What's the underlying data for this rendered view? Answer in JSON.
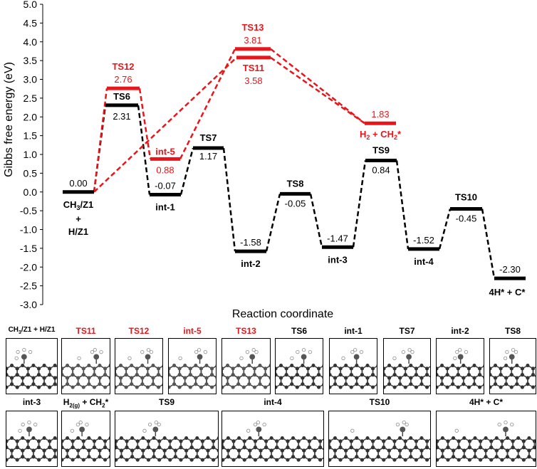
{
  "diagram": {
    "y_axis": {
      "label": "Gibbs free energy (eV)",
      "min": -3.0,
      "max": 5.0,
      "step": 0.5,
      "ticks": [
        "-3.0",
        "-2.5",
        "-2.0",
        "-1.5",
        "-1.0",
        "-0.5",
        "0.0",
        "0.5",
        "1.0",
        "1.5",
        "2.0",
        "2.5",
        "3.0",
        "3.5",
        "4.0",
        "4.5",
        "5.0"
      ]
    },
    "x_axis": {
      "label": "Reaction coordinate"
    },
    "colors": {
      "black_path": "#000000",
      "red_path": "#e8161b"
    },
    "states": [
      {
        "id": "s0",
        "name": "CH3/Z1 + H/Z1",
        "value": 0.0,
        "value_text": "0.00",
        "color": "black"
      },
      {
        "id": "ts6",
        "name": "TS6",
        "value": 2.31,
        "value_text": "2.31",
        "color": "black"
      },
      {
        "id": "ts12",
        "name": "TS12",
        "value": 2.76,
        "value_text": "2.76",
        "color": "red"
      },
      {
        "id": "int1",
        "name": "int-1",
        "value": -0.07,
        "value_text": "-0.07",
        "color": "black"
      },
      {
        "id": "int5",
        "name": "int-5",
        "value": 0.88,
        "value_text": "0.88",
        "color": "red"
      },
      {
        "id": "ts7",
        "name": "TS7",
        "value": 1.17,
        "value_text": "1.17",
        "color": "black"
      },
      {
        "id": "int2",
        "name": "int-2",
        "value": -1.58,
        "value_text": "-1.58",
        "color": "black"
      },
      {
        "id": "ts13",
        "name": "TS13",
        "value": 3.81,
        "value_text": "3.81",
        "color": "red"
      },
      {
        "id": "ts11",
        "name": "TS11",
        "value": 3.58,
        "value_text": "3.58",
        "color": "red"
      },
      {
        "id": "ts8",
        "name": "TS8",
        "value": -0.05,
        "value_text": "-0.05",
        "color": "black"
      },
      {
        "id": "int3",
        "name": "int-3",
        "value": -1.47,
        "value_text": "-1.47",
        "color": "black"
      },
      {
        "id": "ts9",
        "name": "TS9",
        "value": 0.84,
        "value_text": "0.84",
        "color": "black"
      },
      {
        "id": "h2ch2",
        "name": "H2 + CH2*",
        "value": 1.83,
        "value_text": "1.83",
        "color": "red"
      },
      {
        "id": "int4",
        "name": "int-4",
        "value": -1.52,
        "value_text": "-1.52",
        "color": "black"
      },
      {
        "id": "ts10",
        "name": "TS10",
        "value": -0.45,
        "value_text": "-0.45",
        "color": "black"
      },
      {
        "id": "fin",
        "name": "4H* + C*",
        "value": -2.3,
        "value_text": "-2.30",
        "color": "black"
      }
    ],
    "state_labels": {
      "s0_line1": "CH",
      "s0_sub1": "3",
      "s0_rest1": "/Z1",
      "s0_line2": "+",
      "s0_line3": "H/Z1",
      "h2ch2_a": "H",
      "h2ch2_sub": "2",
      "h2ch2_b": " + CH",
      "h2ch2_sub2": "2",
      "h2ch2_c": "*"
    }
  },
  "structure_panels": {
    "row1": [
      {
        "title": "CH3/Z1 + H/Z1",
        "color": "black"
      },
      {
        "title": "TS11",
        "color": "red"
      },
      {
        "title": "TS12",
        "color": "red"
      },
      {
        "title": "int-5",
        "color": "red"
      },
      {
        "title": "TS13",
        "color": "red"
      },
      {
        "title": "TS6",
        "color": "black"
      },
      {
        "title": "int-1",
        "color": "black"
      },
      {
        "title": "TS7",
        "color": "black"
      },
      {
        "title": "int-2",
        "color": "black"
      },
      {
        "title": "TS8",
        "color": "black"
      }
    ],
    "row2": [
      {
        "title": "int-3",
        "color": "black"
      },
      {
        "title": "H2(g) + CH2*",
        "color": "black"
      },
      {
        "title": "TS9",
        "color": "black"
      },
      {
        "title": "int-4",
        "color": "black"
      },
      {
        "title": "TS10",
        "color": "black"
      },
      {
        "title": "4H* + C*",
        "color": "black"
      }
    ],
    "title_parts": {
      "p0_a": "CH",
      "p0_sub": "3",
      "p0_b": "/Z1 + H/Z1",
      "p11_a": "H",
      "p11_sub": "2(g)",
      "p11_b": " + CH",
      "p11_sub2": "2",
      "p11_c": "*"
    }
  }
}
